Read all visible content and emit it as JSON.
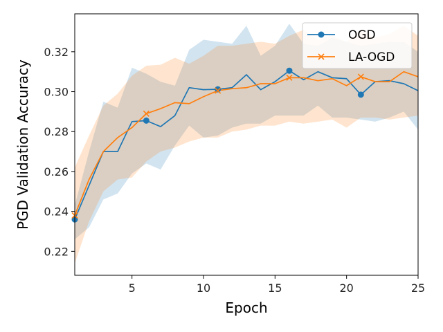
{
  "chart_data": {
    "type": "line",
    "title": "",
    "xlabel": "Epoch",
    "ylabel": "PGD Validation Accuracy",
    "xlim": [
      1,
      25
    ],
    "ylim": [
      0.208,
      0.339
    ],
    "xticks": [
      5,
      10,
      15,
      20,
      25
    ],
    "yticks": [
      0.22,
      0.24,
      0.26,
      0.28,
      0.3,
      0.32
    ],
    "ytick_labels": [
      "0.22",
      "0.24",
      "0.26",
      "0.28",
      "0.30",
      "0.32"
    ],
    "grid": false,
    "legend_position": "top-right",
    "x": [
      1,
      2,
      3,
      4,
      5,
      6,
      7,
      8,
      9,
      10,
      11,
      12,
      13,
      14,
      15,
      16,
      17,
      18,
      19,
      20,
      21,
      22,
      23,
      24,
      25
    ],
    "series": [
      {
        "name": "OGD",
        "color": "#1f77b4",
        "marker": "circle",
        "marker_every": [
          1,
          6,
          11,
          16,
          21
        ],
        "values": [
          0.236,
          0.253,
          0.27,
          0.27,
          0.285,
          0.2855,
          0.2825,
          0.288,
          0.302,
          0.301,
          0.3012,
          0.302,
          0.3085,
          0.301,
          0.305,
          0.3105,
          0.306,
          0.31,
          0.307,
          0.3065,
          0.2985,
          0.305,
          0.3055,
          0.304,
          0.3005
        ],
        "lower": [
          0.226,
          0.232,
          0.246,
          0.249,
          0.259,
          0.264,
          0.261,
          0.273,
          0.283,
          0.277,
          0.278,
          0.282,
          0.284,
          0.284,
          0.288,
          0.288,
          0.288,
          0.293,
          0.287,
          0.287,
          0.286,
          0.285,
          0.287,
          0.29,
          0.281
        ],
        "upper": [
          0.243,
          0.27,
          0.295,
          0.292,
          0.312,
          0.309,
          0.305,
          0.303,
          0.321,
          0.326,
          0.325,
          0.324,
          0.333,
          0.318,
          0.323,
          0.334,
          0.324,
          0.323,
          0.327,
          0.325,
          0.323,
          0.324,
          0.325,
          0.325,
          0.32
        ]
      },
      {
        "name": "LA-OGD",
        "color": "#ff7f0e",
        "marker": "x",
        "marker_every": [
          1,
          6,
          11,
          16,
          21
        ],
        "values": [
          0.238,
          0.256,
          0.27,
          0.277,
          0.282,
          0.289,
          0.2915,
          0.2945,
          0.294,
          0.2975,
          0.3005,
          0.3015,
          0.302,
          0.304,
          0.304,
          0.307,
          0.307,
          0.3055,
          0.3065,
          0.303,
          0.3075,
          0.305,
          0.305,
          0.31,
          0.3075
        ],
        "lower": [
          0.214,
          0.235,
          0.25,
          0.256,
          0.257,
          0.265,
          0.27,
          0.272,
          0.275,
          0.277,
          0.277,
          0.28,
          0.281,
          0.283,
          0.283,
          0.285,
          0.284,
          0.285,
          0.286,
          0.282,
          0.287,
          0.287,
          0.286,
          0.287,
          0.288
        ],
        "upper": [
          0.262,
          0.278,
          0.293,
          0.299,
          0.308,
          0.313,
          0.3135,
          0.317,
          0.314,
          0.318,
          0.323,
          0.323,
          0.324,
          0.325,
          0.324,
          0.328,
          0.331,
          0.326,
          0.328,
          0.325,
          0.331,
          0.327,
          0.329,
          0.333,
          0.328
        ]
      }
    ]
  }
}
